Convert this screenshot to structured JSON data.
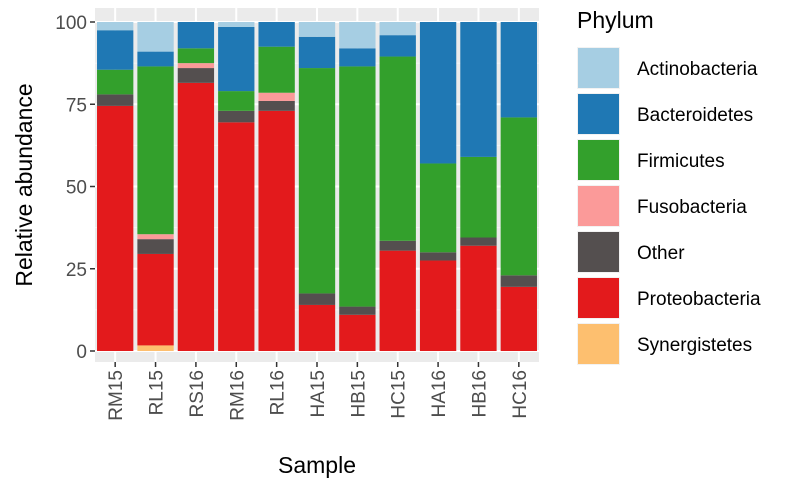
{
  "chart_data": {
    "type": "bar",
    "stacked": true,
    "xlabel": "Sample",
    "ylabel": "Relative abundance",
    "ylim": [
      0,
      100
    ],
    "yticks": [
      0,
      25,
      50,
      75,
      100
    ],
    "grid": true,
    "legend_position": "right",
    "legend_title": "Phylum",
    "categories": [
      "RM15",
      "RL15",
      "RS16",
      "RM16",
      "RL16",
      "HA15",
      "HB15",
      "HC15",
      "HA16",
      "HB16",
      "HC16"
    ],
    "series": [
      {
        "name": "Synergistetes",
        "color": "#FDBF6F",
        "values": [
          0,
          1.7,
          0,
          0,
          0,
          0,
          0,
          0,
          0,
          0,
          0
        ]
      },
      {
        "name": "Proteobacteria",
        "color": "#E31A1C",
        "values": [
          74.5,
          27.8,
          81.5,
          69.5,
          73,
          14,
          11,
          30.5,
          27.5,
          32,
          19.5
        ]
      },
      {
        "name": "Other",
        "color": "#544F4F",
        "values": [
          3.5,
          4.5,
          4.5,
          3.5,
          3,
          3.5,
          2.5,
          3,
          2.5,
          2.5,
          3.5
        ]
      },
      {
        "name": "Fusobacteria",
        "color": "#FB9A99",
        "values": [
          0,
          1.5,
          1.5,
          0,
          2.5,
          0,
          0,
          0,
          0,
          0,
          0
        ]
      },
      {
        "name": "Firmicutes",
        "color": "#33A02C",
        "values": [
          7.5,
          51,
          4.5,
          6,
          14,
          68.5,
          73,
          56,
          27,
          24.5,
          48
        ]
      },
      {
        "name": "Bacteroidetes",
        "color": "#1F78B4",
        "values": [
          12,
          4.5,
          8,
          19.5,
          7.5,
          9.5,
          5.5,
          6.5,
          43,
          41,
          29
        ]
      },
      {
        "name": "Actinobacteria",
        "color": "#A6CEE3",
        "values": [
          2.5,
          9,
          0,
          1.5,
          0,
          4.5,
          8,
          4,
          0,
          0,
          0
        ]
      }
    ],
    "legend_order": [
      "Actinobacteria",
      "Bacteroidetes",
      "Firmicutes",
      "Fusobacteria",
      "Other",
      "Proteobacteria",
      "Synergistetes"
    ]
  }
}
